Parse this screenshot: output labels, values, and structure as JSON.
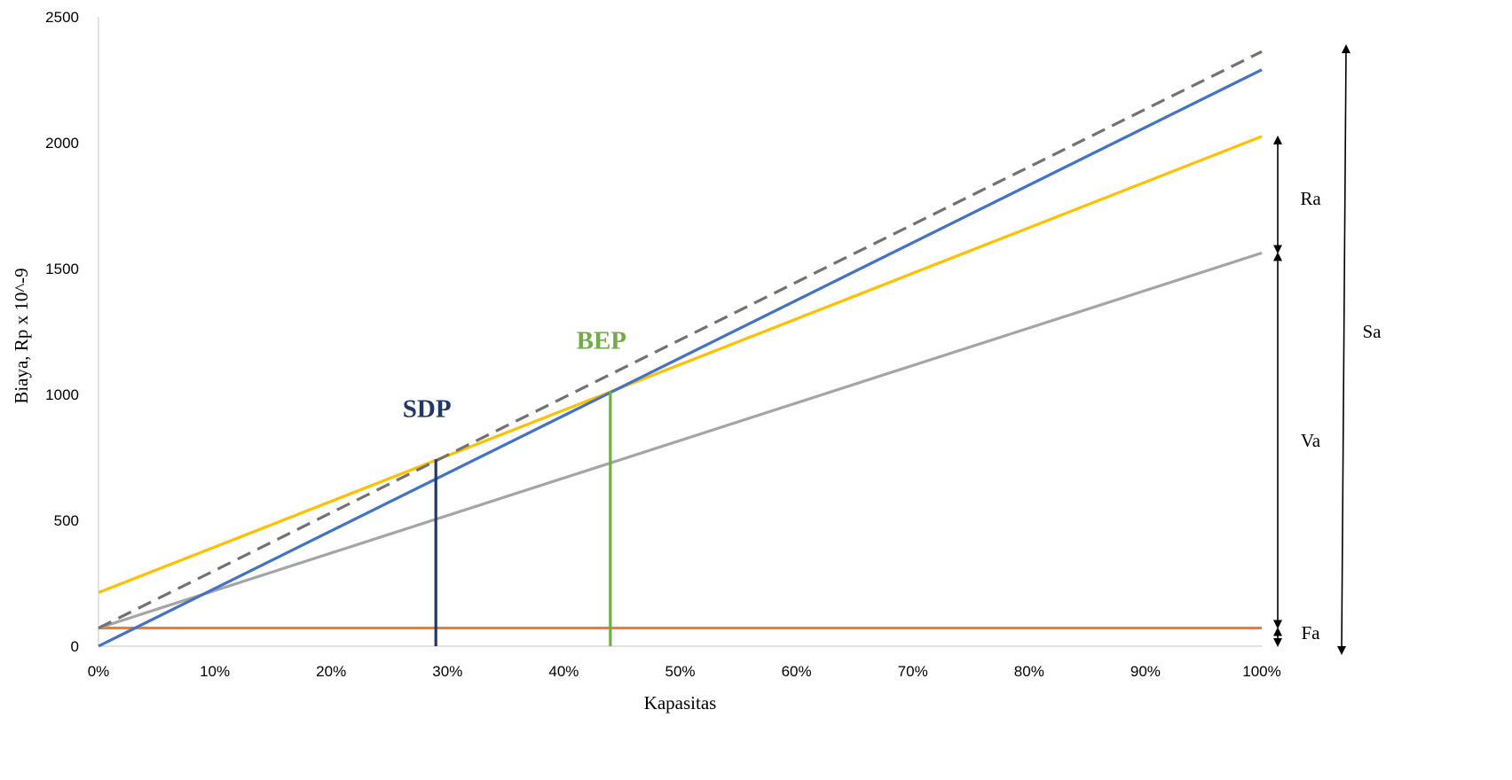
{
  "chart_data": {
    "type": "line",
    "xlabel": "Kapasitas",
    "ylabel": "Biaya, Rp x 10^-9",
    "xlim": [
      0,
      1
    ],
    "ylim": [
      0,
      2500
    ],
    "x_ticks": [
      "0%",
      "10%",
      "20%",
      "30%",
      "40%",
      "50%",
      "60%",
      "70%",
      "80%",
      "90%",
      "100%"
    ],
    "y_ticks": [
      "0",
      "500",
      "1000",
      "1500",
      "2000",
      "2500"
    ],
    "grid": false,
    "series": [
      {
        "color": "#ED7D31",
        "style": "solid",
        "points": [
          [
            0,
            72
          ],
          [
            1,
            72
          ]
        ]
      },
      {
        "color": "#A5A5A5",
        "style": "solid",
        "points": [
          [
            0,
            72
          ],
          [
            1,
            1562
          ]
        ]
      },
      {
        "color": "#FFC000",
        "style": "solid",
        "points": [
          [
            0,
            213
          ],
          [
            1,
            2025
          ]
        ]
      },
      {
        "color": "#4472C4",
        "style": "solid",
        "points": [
          [
            0,
            0
          ],
          [
            1,
            2290
          ]
        ]
      },
      {
        "color": "#767171",
        "style": "dashed",
        "points": [
          [
            0,
            72
          ],
          [
            1,
            2362
          ]
        ]
      }
    ],
    "markers": [
      {
        "label": "SDP",
        "x": 0.29,
        "y": 742,
        "color": "#203864"
      },
      {
        "label": "BEP",
        "x": 0.44,
        "y": 1012,
        "color": "#70AD47"
      }
    ],
    "annotations": [
      {
        "label": "Ra",
        "from": 1562,
        "to": 2025
      },
      {
        "label": "Va",
        "from": 72,
        "to": 1562
      },
      {
        "label": "Fa",
        "from": 0,
        "to": 72
      },
      {
        "label": "Sa",
        "from": 0,
        "to": 2362
      }
    ]
  }
}
